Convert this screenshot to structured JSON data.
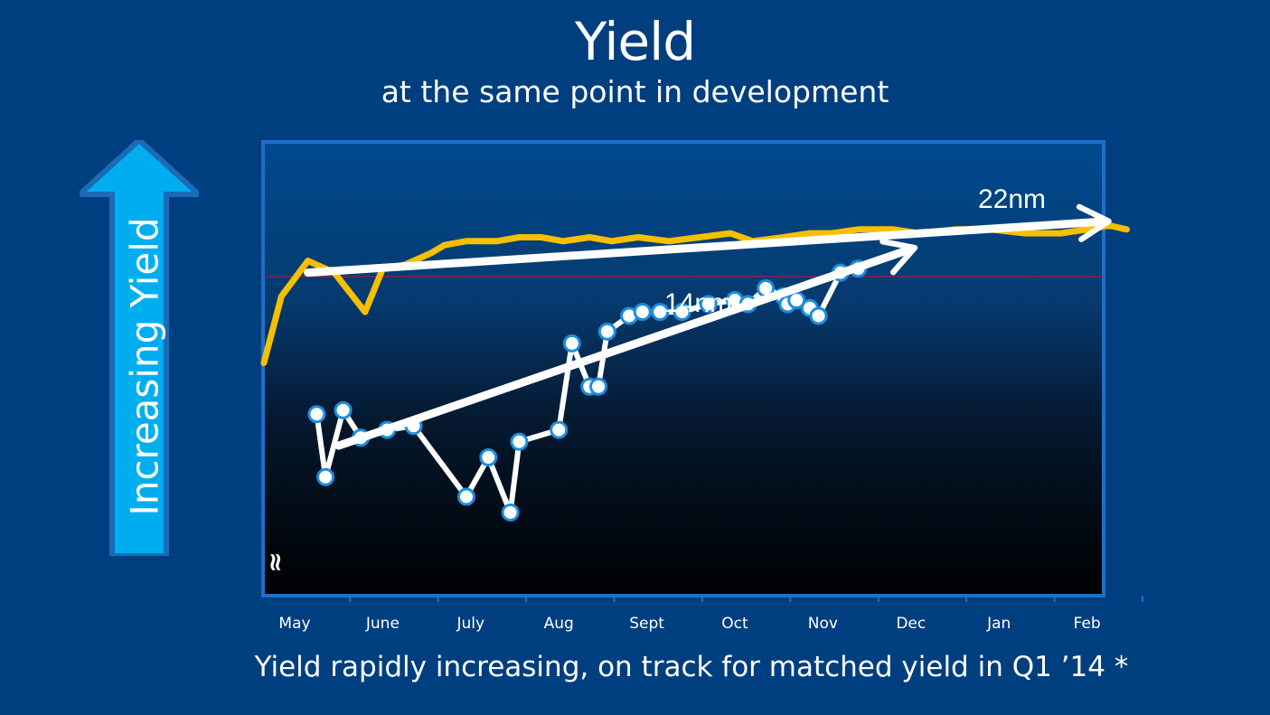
{
  "slide": {
    "title": "Yield",
    "subtitle": "at the same point in development",
    "footer": "Yield rapidly increasing, on track for matched yield in Q1 ’14 *",
    "arrow_label": "Increasing Yield",
    "axis_break_symbol": "≈"
  },
  "colors": {
    "background": "#003f7f",
    "plot_border": "#1e6fc8",
    "series_22nm": "#f6c000",
    "series_14nm": "#ffffff",
    "marker_outline": "#1a8ee0",
    "reference_line": "#c0182a",
    "arrow_fill": "#00aeef"
  },
  "chart_data": {
    "type": "line",
    "title": "Yield",
    "subtitle": "at the same point in development",
    "xlabel": "",
    "ylabel": "Increasing Yield",
    "x_tick_labels": [
      "May",
      "June",
      "July",
      "Aug",
      "Sept",
      "Oct",
      "Nov",
      "Dec",
      "Jan",
      "Feb"
    ],
    "xlim": [
      0,
      9.5
    ],
    "ylim": [
      0,
      100
    ],
    "y_axis_values_shown": false,
    "grid": false,
    "legend": "none",
    "reference_line_y": 83,
    "series": [
      {
        "name": "22nm",
        "markers": false,
        "x": [
          -0.35,
          -0.15,
          0.15,
          0.45,
          0.8,
          1.0,
          1.25,
          1.55,
          1.7,
          1.95,
          2.3,
          2.55,
          2.8,
          3.05,
          3.35,
          3.6,
          3.9,
          4.25,
          4.6,
          4.95,
          5.2,
          5.55,
          5.85,
          6.1,
          6.4,
          6.8,
          7.1,
          7.5,
          7.9,
          8.3,
          8.7,
          9.0,
          9.25,
          9.45
        ],
        "y": [
          61,
          78,
          87,
          84,
          74,
          85,
          86,
          89,
          91,
          92,
          92,
          93,
          93,
          92,
          93,
          92,
          93,
          92,
          93,
          94,
          92,
          93,
          94,
          94,
          95,
          95,
          94,
          95,
          95,
          94,
          94,
          95,
          96,
          95
        ]
      },
      {
        "name": "14nm",
        "markers": true,
        "x": [
          0.25,
          0.35,
          0.55,
          0.75,
          1.05,
          1.35,
          1.95,
          2.2,
          2.45,
          2.55,
          3.0,
          3.15,
          3.35,
          3.45,
          3.55,
          3.8,
          3.95,
          4.15,
          4.4,
          4.7,
          5.0,
          5.15,
          5.35,
          5.55,
          5.6,
          5.7,
          5.85,
          5.95,
          6.2,
          6.4
        ],
        "y": [
          48,
          32,
          49,
          42,
          44,
          45,
          27,
          37,
          23,
          41,
          44,
          66,
          55,
          55,
          69,
          73,
          74,
          74,
          74,
          76,
          77,
          76,
          80,
          78,
          76,
          77,
          75,
          73,
          84,
          85
        ]
      }
    ],
    "annotations": [
      {
        "text": "22nm"
      },
      {
        "text": "14nm"
      }
    ],
    "trend_arrows": [
      {
        "series": "22nm",
        "from": [
          0.15,
          84
        ],
        "to": [
          9.2,
          97
        ]
      },
      {
        "series": "14nm",
        "from": [
          0.5,
          40
        ],
        "to": [
          7.0,
          90
        ]
      }
    ]
  }
}
